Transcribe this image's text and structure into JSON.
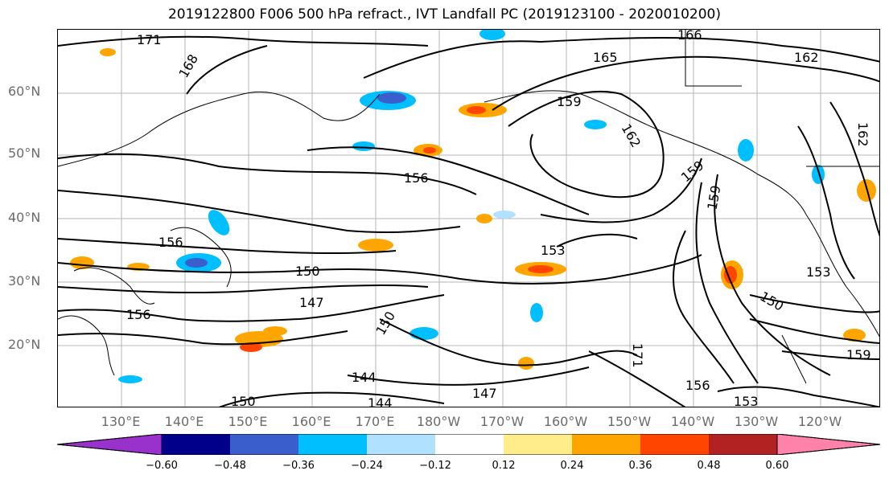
{
  "title": "2019122800 F006 500 hPa refract., IVT Landfall PC (2019123100 - 2020010200)",
  "lat_labels": [
    "60°N",
    "50°N",
    "40°N",
    "30°N",
    "20°N"
  ],
  "lon_labels": [
    "130°E",
    "140°E",
    "150°E",
    "160°E",
    "170°E",
    "180°W",
    "170°W",
    "160°W",
    "150°W",
    "140°W",
    "130°W",
    "120°W"
  ],
  "contour_labels": [
    "171",
    "168",
    "166",
    "165",
    "162",
    "159",
    "162",
    "162",
    "156",
    "159",
    "159",
    "156",
    "150",
    "153",
    "153",
    "150",
    "147",
    "156",
    "150",
    "144",
    "144",
    "147",
    "156",
    "153",
    "159",
    "171",
    "150"
  ],
  "colorbar": {
    "colors": [
      "#9932cc",
      "#00008b",
      "#3a5fcd",
      "#00bfff",
      "#b0e2ff",
      "#ffffff",
      "#ffec8b",
      "#ffa500",
      "#ff4500",
      "#b22222",
      "#ff82ab"
    ],
    "ticks": [
      "−0.60",
      "−0.48",
      "−0.36",
      "−0.24",
      "−0.12",
      "0.12",
      "0.24",
      "0.36",
      "0.48",
      "0.60"
    ]
  }
}
